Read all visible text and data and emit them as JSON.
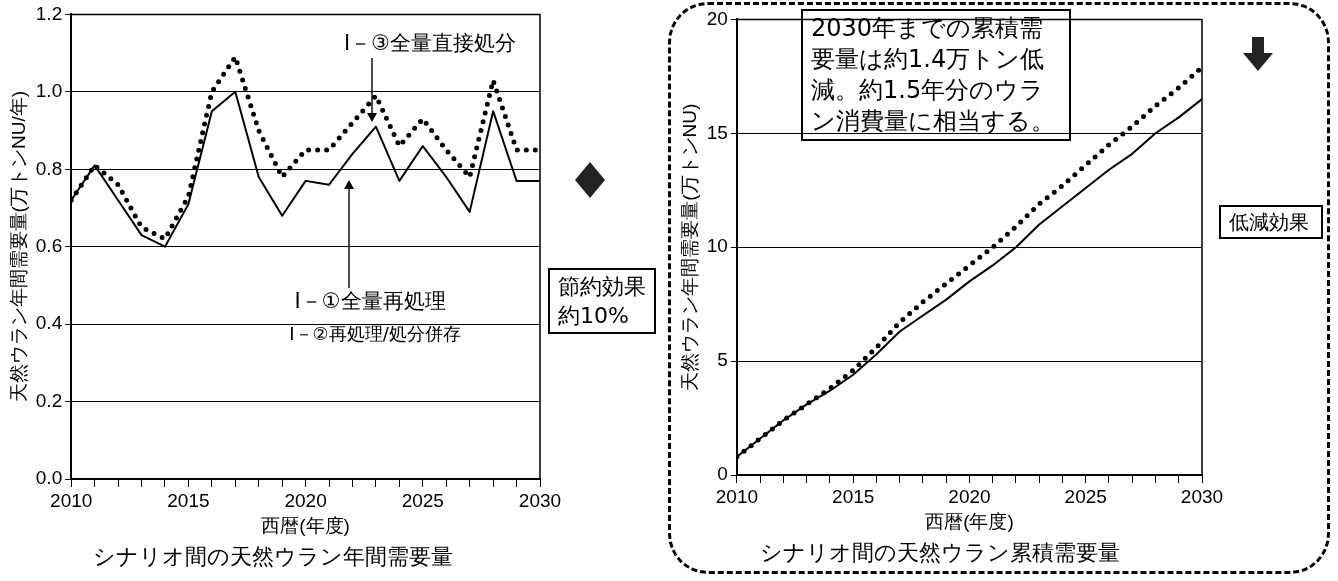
{
  "chart_data": [
    {
      "type": "line",
      "title": "シナリオ間の天然ウラン年間需要量",
      "xlabel": "西暦(年度)",
      "ylabel": "天然ウラン年間需要量(万トンNU/年)",
      "x": [
        2010,
        2011,
        2012,
        2013,
        2014,
        2015,
        2016,
        2017,
        2018,
        2019,
        2020,
        2021,
        2022,
        2023,
        2024,
        2025,
        2026,
        2027,
        2028,
        2029,
        2030
      ],
      "series": [
        {
          "color": "#000000",
          "line_style": "solid",
          "values": [
            0.72,
            0.81,
            0.72,
            0.63,
            0.6,
            0.71,
            0.95,
            1.0,
            0.78,
            0.68,
            0.77,
            0.76,
            0.84,
            0.91,
            0.77,
            0.86,
            0.78,
            0.69,
            0.95,
            0.77,
            0.77
          ]
        },
        {
          "color": "#000000",
          "line_style": "dotted",
          "values": [
            0.72,
            0.81,
            0.76,
            0.65,
            0.62,
            0.73,
            1.0,
            1.09,
            0.9,
            0.78,
            0.85,
            0.85,
            0.92,
            0.99,
            0.86,
            0.93,
            0.85,
            0.78,
            1.03,
            0.85,
            0.85
          ]
        }
      ],
      "xlim": [
        2010,
        2030
      ],
      "xticks": [
        2010,
        {
          "value": 2011,
          "label": null
        },
        {
          "value": 2012,
          "label": null
        },
        {
          "value": 2013,
          "label": null
        },
        {
          "value": 2014,
          "label": null
        },
        2015,
        {
          "value": 2016,
          "label": null
        },
        {
          "value": 2017,
          "label": null
        },
        {
          "value": 2018,
          "label": null
        },
        {
          "value": 2019,
          "label": null
        },
        2020,
        {
          "value": 2021,
          "label": null
        },
        {
          "value": 2022,
          "label": null
        },
        {
          "value": 2023,
          "label": null
        },
        {
          "value": 2024,
          "label": null
        },
        2025,
        {
          "value": 2026,
          "label": null
        },
        {
          "value": 2027,
          "label": null
        },
        {
          "value": 2028,
          "label": null
        },
        {
          "value": 2029,
          "label": null
        },
        2030
      ],
      "ylim": [
        0,
        1.2
      ],
      "yticks": [
        {
          "value": 0,
          "label": "0.0"
        },
        {
          "value": 0.2,
          "label": "0.2"
        },
        {
          "value": 0.4,
          "label": "0.4"
        },
        {
          "value": 0.6,
          "label": "0.6"
        },
        {
          "value": 0.8,
          "label": "0.8"
        },
        {
          "value": 1,
          "label": "1.0"
        },
        {
          "value": 1.2,
          "label": "1.2"
        }
      ],
      "grid": "y",
      "legend": false,
      "marker": "none",
      "annotations": [
        "I－③全量直接処分",
        "I－①全量再処理",
        "I－②再処理/処分併存",
        "節約効果約10%"
      ]
    },
    {
      "type": "line",
      "title": "シナリオ間の天然ウラン累積需要量",
      "xlabel": "西暦(年度)",
      "ylabel": "天然ウラン年間需要量(万トンNU)",
      "x": [
        2010,
        2011,
        2012,
        2013,
        2014,
        2015,
        2016,
        2017,
        2018,
        2019,
        2020,
        2021,
        2022,
        2023,
        2024,
        2025,
        2026,
        2027,
        2028,
        2029,
        2030
      ],
      "series": [
        {
          "color": "#000000",
          "line_style": "solid",
          "values": [
            0.8,
            1.6,
            2.4,
            3.1,
            3.7,
            4.4,
            5.3,
            6.3,
            7.0,
            7.7,
            8.5,
            9.2,
            10.0,
            11.0,
            11.8,
            12.6,
            13.4,
            14.1,
            15.0,
            15.7,
            16.5
          ]
        },
        {
          "color": "#000000",
          "line_style": "dotted",
          "values": [
            0.8,
            1.6,
            2.4,
            3.1,
            3.8,
            4.6,
            5.6,
            6.7,
            7.6,
            8.4,
            9.2,
            10.0,
            10.9,
            11.9,
            12.7,
            13.6,
            14.5,
            15.3,
            16.2,
            17.0,
            17.9
          ]
        }
      ],
      "xlim": [
        2010,
        2030
      ],
      "xticks": [
        2010,
        {
          "value": 2011,
          "label": null
        },
        {
          "value": 2012,
          "label": null
        },
        {
          "value": 2013,
          "label": null
        },
        {
          "value": 2014,
          "label": null
        },
        2015,
        {
          "value": 2016,
          "label": null
        },
        {
          "value": 2017,
          "label": null
        },
        {
          "value": 2018,
          "label": null
        },
        {
          "value": 2019,
          "label": null
        },
        2020,
        {
          "value": 2021,
          "label": null
        },
        {
          "value": 2022,
          "label": null
        },
        {
          "value": 2023,
          "label": null
        },
        {
          "value": 2024,
          "label": null
        },
        2025,
        {
          "value": 2026,
          "label": null
        },
        {
          "value": 2027,
          "label": null
        },
        {
          "value": 2028,
          "label": null
        },
        {
          "value": 2029,
          "label": null
        },
        2030
      ],
      "ylim": [
        0,
        20
      ],
      "yticks": [
        0,
        5,
        10,
        15,
        20
      ],
      "grid": "y",
      "legend": false,
      "marker": "none",
      "annotations": [
        "2030年までの累積需要量は約1.4万トン低減。約1.5年分のウラン消費量に相当する。",
        "低減効果"
      ]
    }
  ]
}
